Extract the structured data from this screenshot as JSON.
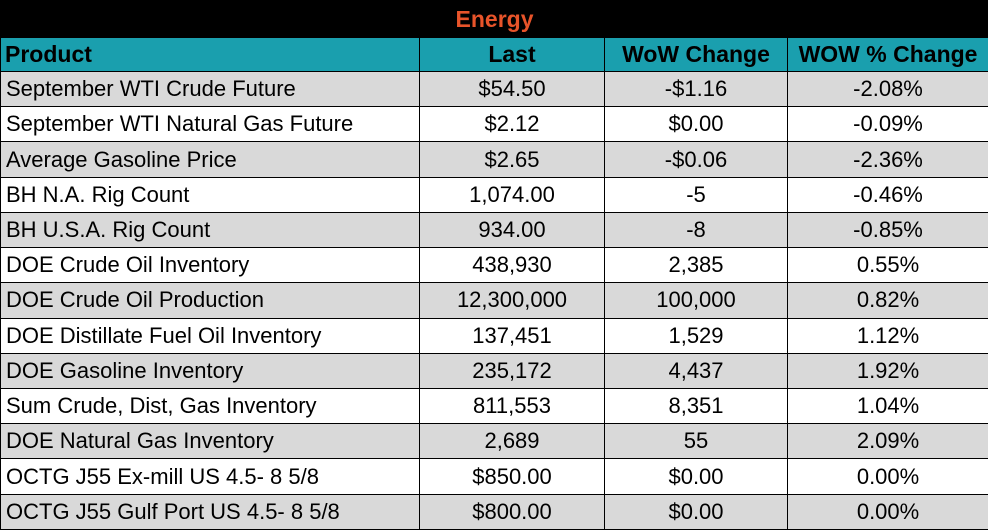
{
  "title": "Energy",
  "colors": {
    "title_bg": "#000000",
    "title_text": "#e8542a",
    "header_bg": "#1a9fae",
    "row_shaded": "#d9d9d9",
    "row_plain": "#ffffff",
    "border": "#000000"
  },
  "headers": [
    "Product",
    "Last",
    "WoW Change",
    "WOW % Change"
  ],
  "rows": [
    [
      "September WTI Crude Future",
      "$54.50",
      "-$1.16",
      "-2.08%"
    ],
    [
      "September WTI Natural Gas Future",
      "$2.12",
      "$0.00",
      "-0.09%"
    ],
    [
      "Average Gasoline Price",
      "$2.65",
      "-$0.06",
      "-2.36%"
    ],
    [
      "BH N.A. Rig Count",
      "1,074.00",
      "-5",
      "-0.46%"
    ],
    [
      "BH U.S.A. Rig Count",
      "934.00",
      "-8",
      "-0.85%"
    ],
    [
      "DOE Crude Oil Inventory",
      "438,930",
      "2,385",
      "0.55%"
    ],
    [
      "DOE Crude Oil Production",
      "12,300,000",
      "100,000",
      "0.82%"
    ],
    [
      "DOE Distillate Fuel Oil Inventory",
      "137,451",
      "1,529",
      "1.12%"
    ],
    [
      "DOE Gasoline Inventory",
      "235,172",
      "4,437",
      "1.92%"
    ],
    [
      "Sum Crude, Dist, Gas Inventory",
      "811,553",
      "8,351",
      "1.04%"
    ],
    [
      "DOE Natural Gas Inventory",
      "2,689",
      "55",
      "2.09%"
    ],
    [
      "OCTG J55 Ex-mill US 4.5- 8 5/8",
      "$850.00",
      "$0.00",
      "0.00%"
    ],
    [
      "OCTG J55 Gulf Port US 4.5- 8 5/8",
      "$800.00",
      "$0.00",
      "0.00%"
    ]
  ]
}
